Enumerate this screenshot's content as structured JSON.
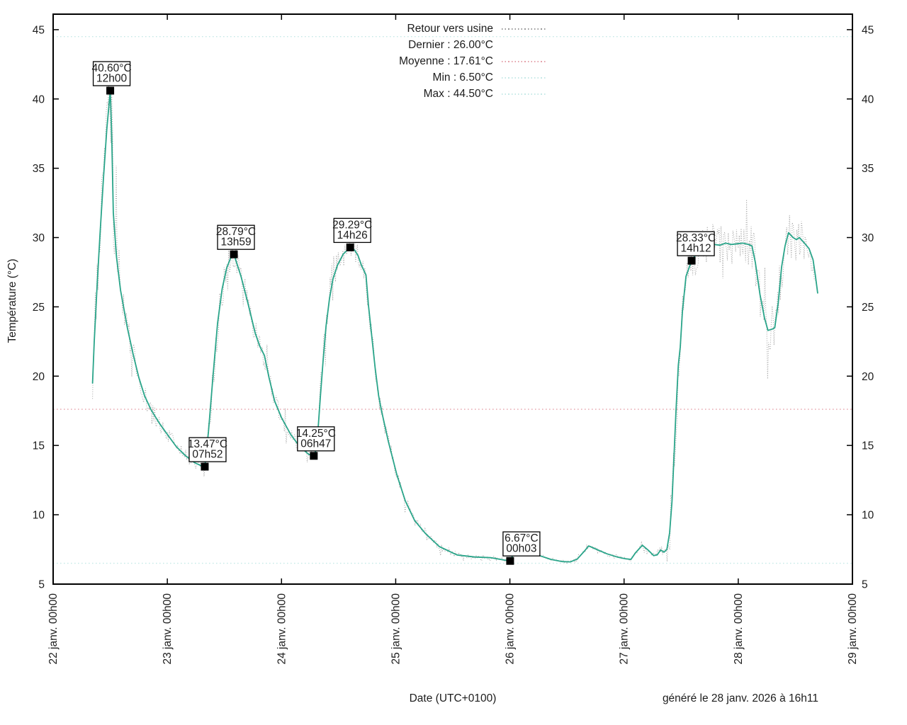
{
  "chart_data": {
    "type": "line",
    "title": "Retour vers usine",
    "xlabel": "Date (UTC+0100)",
    "ylabel": "Température (°C)",
    "footer_note": "généré le 28 janv. 2026 à 16h11",
    "ylim": [
      5,
      45
    ],
    "y_ticks": [
      5,
      10,
      15,
      20,
      25,
      30,
      35,
      40,
      45
    ],
    "x_tick_labels": [
      "22 janv. 00h00",
      "23 janv. 00h00",
      "24 janv. 00h00",
      "25 janv. 00h00",
      "26 janv. 00h00",
      "27 janv. 00h00",
      "28 janv. 00h00",
      "29 janv. 00h00"
    ],
    "x_span_days": 7,
    "grid": "stat-lines-only",
    "legend_position": "top-center",
    "stats": {
      "dernier": 26.0,
      "moyenne": 17.61,
      "min": 6.5,
      "max": 44.5
    },
    "legend": {
      "items": [
        {
          "label": "Retour vers usine",
          "sample": "raw"
        },
        {
          "label": "Dernier : 26.00°C",
          "sample": "none"
        },
        {
          "label": "Moyenne : 17.61°C",
          "sample": "mean"
        },
        {
          "label": "Min : 6.50°C",
          "sample": "minmax"
        },
        {
          "label": "Max : 44.50°C",
          "sample": "minmax"
        }
      ]
    },
    "annotations": [
      {
        "temp_label": "40.60°C",
        "time_label": "12h00",
        "day": 0.5,
        "value": 40.6,
        "dx": 2
      },
      {
        "temp_label": "13.47°C",
        "time_label": "07h52",
        "day": 1.3278,
        "value": 13.47,
        "dx": 4
      },
      {
        "temp_label": "28.79°C",
        "time_label": "13h59",
        "day": 1.5826,
        "value": 28.79,
        "dx": 3
      },
      {
        "temp_label": "14.25°C",
        "time_label": "06h47",
        "day": 2.2826,
        "value": 14.25,
        "dx": 3
      },
      {
        "temp_label": "29.29°C",
        "time_label": "14h26",
        "day": 2.6014,
        "value": 29.29,
        "dx": 3
      },
      {
        "temp_label": "6.67°C",
        "time_label": "00h03",
        "day": 4.0021,
        "value": 6.67,
        "dx": 16
      },
      {
        "temp_label": "28.33°C",
        "time_label": "14h12",
        "day": 5.5917,
        "value": 28.33,
        "dx": 6
      }
    ],
    "series": [
      {
        "name": "smoothed",
        "style": "solid",
        "points": [
          [
            0.345,
            19.5
          ],
          [
            0.36,
            22.5
          ],
          [
            0.385,
            26.5
          ],
          [
            0.41,
            30.2
          ],
          [
            0.44,
            34.2
          ],
          [
            0.47,
            37.8
          ],
          [
            0.5,
            40.6
          ],
          [
            0.513,
            37.3
          ],
          [
            0.527,
            31.8
          ],
          [
            0.555,
            28.6
          ],
          [
            0.59,
            26.2
          ],
          [
            0.65,
            23.5
          ],
          [
            0.7,
            21.6
          ],
          [
            0.75,
            19.9
          ],
          [
            0.8,
            18.6
          ],
          [
            0.856,
            17.6
          ],
          [
            0.93,
            16.6
          ],
          [
            1.0,
            15.8
          ],
          [
            1.08,
            14.9
          ],
          [
            1.16,
            14.25
          ],
          [
            1.24,
            13.75
          ],
          [
            1.3,
            13.52
          ],
          [
            1.328,
            13.47
          ],
          [
            1.36,
            16.0
          ],
          [
            1.4,
            20.0
          ],
          [
            1.44,
            23.8
          ],
          [
            1.48,
            26.3
          ],
          [
            1.52,
            27.8
          ],
          [
            1.553,
            28.5
          ],
          [
            1.583,
            28.79
          ],
          [
            1.645,
            27.2
          ],
          [
            1.705,
            25.3
          ],
          [
            1.77,
            23.1
          ],
          [
            1.81,
            22.15
          ],
          [
            1.85,
            21.5
          ],
          [
            1.89,
            19.9
          ],
          [
            1.94,
            18.2
          ],
          [
            2.0,
            17.0
          ],
          [
            2.08,
            15.8
          ],
          [
            2.16,
            14.9
          ],
          [
            2.24,
            14.35
          ],
          [
            2.283,
            14.25
          ],
          [
            2.3,
            14.6
          ],
          [
            2.32,
            16.2
          ],
          [
            2.34,
            18.5
          ],
          [
            2.365,
            21.2
          ],
          [
            2.39,
            23.6
          ],
          [
            2.42,
            25.6
          ],
          [
            2.45,
            27.0
          ],
          [
            2.49,
            28.0
          ],
          [
            2.54,
            28.8
          ],
          [
            2.601,
            29.29
          ],
          [
            2.64,
            29.1
          ],
          [
            2.67,
            28.7
          ],
          [
            2.7,
            28.0
          ],
          [
            2.74,
            27.3
          ],
          [
            2.76,
            25.2
          ],
          [
            2.79,
            22.9
          ],
          [
            2.82,
            20.6
          ],
          [
            2.85,
            18.6
          ],
          [
            2.873,
            17.6
          ],
          [
            2.935,
            15.3
          ],
          [
            3.01,
            12.9
          ],
          [
            3.084,
            11.0
          ],
          [
            3.165,
            9.6
          ],
          [
            3.258,
            8.67
          ],
          [
            3.382,
            7.7
          ],
          [
            3.537,
            7.1
          ],
          [
            3.692,
            6.95
          ],
          [
            3.835,
            6.9
          ],
          [
            3.95,
            6.73
          ],
          [
            4.002,
            6.67
          ],
          [
            4.05,
            7.5
          ],
          [
            4.09,
            7.95
          ],
          [
            4.16,
            7.55
          ],
          [
            4.26,
            7.05
          ],
          [
            4.36,
            6.78
          ],
          [
            4.46,
            6.62
          ],
          [
            4.53,
            6.6
          ],
          [
            4.59,
            6.8
          ],
          [
            4.65,
            7.35
          ],
          [
            4.69,
            7.75
          ],
          [
            4.76,
            7.5
          ],
          [
            4.85,
            7.18
          ],
          [
            4.94,
            6.95
          ],
          [
            5.01,
            6.83
          ],
          [
            5.06,
            6.78
          ],
          [
            5.1,
            7.25
          ],
          [
            5.16,
            7.8
          ],
          [
            5.21,
            7.45
          ],
          [
            5.26,
            7.05
          ],
          [
            5.29,
            7.1
          ],
          [
            5.32,
            7.45
          ],
          [
            5.35,
            7.3
          ],
          [
            5.375,
            7.5
          ],
          [
            5.399,
            8.7
          ],
          [
            5.42,
            11.0
          ],
          [
            5.455,
            17.5
          ],
          [
            5.475,
            20.8
          ],
          [
            5.492,
            22.1
          ],
          [
            5.511,
            24.7
          ],
          [
            5.542,
            27.2
          ],
          [
            5.592,
            28.33
          ],
          [
            5.64,
            28.9
          ],
          [
            5.7,
            29.4
          ],
          [
            5.74,
            29.67
          ],
          [
            5.79,
            29.5
          ],
          [
            5.84,
            29.45
          ],
          [
            5.89,
            29.6
          ],
          [
            5.94,
            29.5
          ],
          [
            5.99,
            29.55
          ],
          [
            6.04,
            29.6
          ],
          [
            6.09,
            29.5
          ],
          [
            6.12,
            29.4
          ],
          [
            6.15,
            28.2
          ],
          [
            6.19,
            25.9
          ],
          [
            6.23,
            24.2
          ],
          [
            6.26,
            23.3
          ],
          [
            6.3,
            23.4
          ],
          [
            6.32,
            23.5
          ],
          [
            6.35,
            25.3
          ],
          [
            6.38,
            27.9
          ],
          [
            6.41,
            29.4
          ],
          [
            6.44,
            30.35
          ],
          [
            6.48,
            30.0
          ],
          [
            6.51,
            29.85
          ],
          [
            6.535,
            30.0
          ],
          [
            6.58,
            29.6
          ],
          [
            6.62,
            29.2
          ],
          [
            6.655,
            28.4
          ],
          [
            6.675,
            27.3
          ],
          [
            6.695,
            26.0
          ]
        ]
      },
      {
        "name": "raw",
        "style": "dotted",
        "derived": "smoothed-plus-noise",
        "noise_amplitude": [
          [
            0.345,
            1.3
          ],
          [
            0.44,
            2.6
          ],
          [
            0.5,
            3.9
          ],
          [
            0.56,
            3.0
          ],
          [
            0.62,
            1.6
          ],
          [
            0.75,
            0.9
          ],
          [
            0.95,
            0.55
          ],
          [
            1.25,
            0.5
          ],
          [
            1.33,
            0.75
          ],
          [
            1.42,
            1.6
          ],
          [
            1.55,
            1.1
          ],
          [
            1.65,
            1.0
          ],
          [
            1.85,
            0.9
          ],
          [
            2.1,
            0.5
          ],
          [
            2.28,
            0.8
          ],
          [
            2.42,
            1.7
          ],
          [
            2.6,
            1.0
          ],
          [
            2.72,
            0.9
          ],
          [
            2.9,
            0.6
          ],
          [
            3.2,
            0.35
          ],
          [
            3.6,
            0.2
          ],
          [
            4.0,
            0.15
          ],
          [
            4.5,
            0.12
          ],
          [
            5.0,
            0.15
          ],
          [
            5.25,
            0.2
          ],
          [
            5.36,
            0.4
          ],
          [
            5.43,
            2.8
          ],
          [
            5.5,
            2.2
          ],
          [
            5.6,
            1.6
          ],
          [
            5.8,
            1.4
          ],
          [
            6.0,
            1.4
          ],
          [
            6.15,
            1.7
          ],
          [
            6.3,
            1.7
          ],
          [
            6.42,
            1.9
          ],
          [
            6.55,
            1.4
          ],
          [
            6.695,
            0.9
          ]
        ],
        "clamp": [
          6.5,
          44.5
        ]
      }
    ]
  },
  "colors": {
    "line": "#2aa58a",
    "raw": "#999999",
    "mean_line": "#e5a3ab",
    "minmax_line": "#c6e9e7",
    "annotation_text": "#2aa58a",
    "annotation_border": "#000000",
    "marker": "#000000",
    "axis": "#000000",
    "background": "#ffffff"
  }
}
